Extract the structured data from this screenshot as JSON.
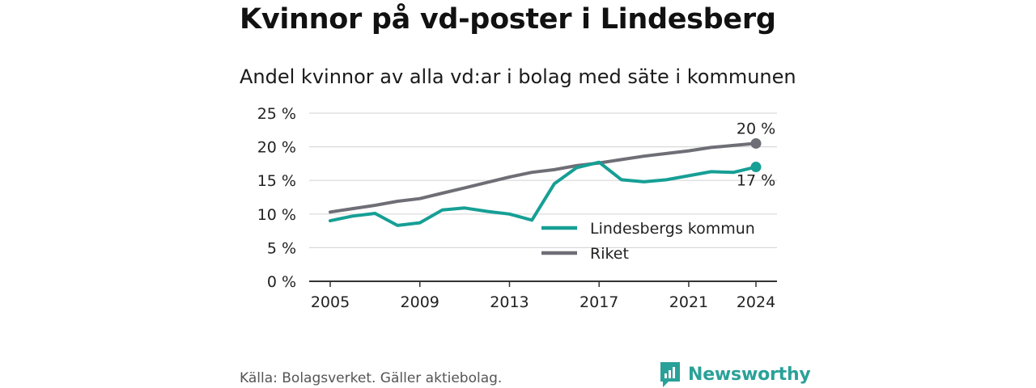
{
  "header": {
    "title": "Kvinnor på vd-poster i Lindesberg",
    "subtitle": "Andel kvinnor av alla vd:ar i bolag med säte i kommunen"
  },
  "footer": {
    "source": "Källa: Bolagsverket. Gäller aktiebolag.",
    "brand": "Newsworthy"
  },
  "colors": {
    "lindesberg": "#169f95",
    "riket": "#6e6e76",
    "grid": "#d9d9d9",
    "axis": "#333333",
    "brand": "#2aa198"
  },
  "chart_data": {
    "type": "line",
    "ylim": [
      0,
      25
    ],
    "yticks": [
      0,
      5,
      10,
      15,
      20,
      25
    ],
    "ytick_labels": [
      "0 %",
      "5 %",
      "10 %",
      "15 %",
      "20 %",
      "25 %"
    ],
    "xlim": [
      2005,
      2024
    ],
    "xticks": [
      2005,
      2009,
      2013,
      2017,
      2021,
      2024
    ],
    "xtick_labels": [
      "2005",
      "2009",
      "2013",
      "2017",
      "2021",
      "2024"
    ],
    "grid": true,
    "legend_position": "lower-right",
    "x": [
      2005,
      2006,
      2007,
      2008,
      2009,
      2010,
      2011,
      2012,
      2013,
      2014,
      2015,
      2016,
      2017,
      2018,
      2019,
      2020,
      2021,
      2022,
      2023,
      2024
    ],
    "series": [
      {
        "name": "Lindesbergs kommun",
        "key": "lindesberg",
        "values": [
          9.0,
          9.7,
          10.1,
          8.3,
          8.7,
          10.6,
          10.9,
          10.4,
          10.0,
          9.1,
          14.5,
          16.9,
          17.7,
          15.1,
          14.8,
          15.1,
          15.7,
          16.3,
          16.2,
          17.0
        ],
        "end_label": "17 %"
      },
      {
        "name": "Riket",
        "key": "riket",
        "values": [
          10.3,
          10.8,
          11.3,
          11.9,
          12.3,
          13.1,
          13.9,
          14.7,
          15.5,
          16.2,
          16.6,
          17.2,
          17.6,
          18.1,
          18.6,
          19.0,
          19.4,
          19.9,
          20.2,
          20.5
        ],
        "end_label": "20 %"
      }
    ]
  }
}
